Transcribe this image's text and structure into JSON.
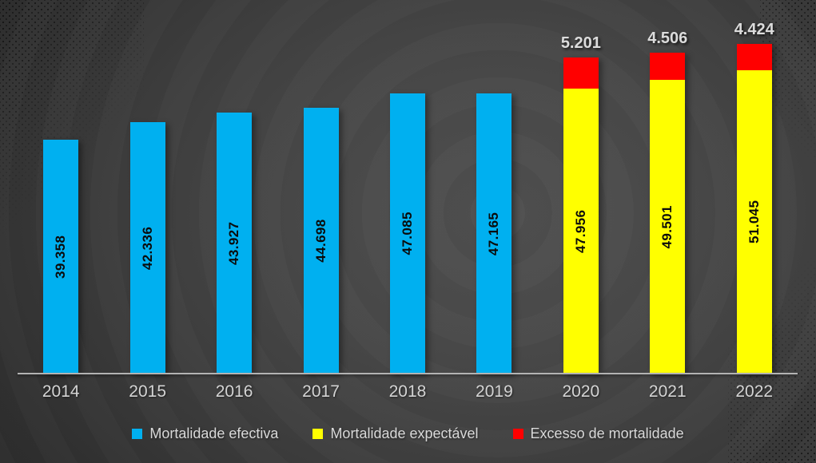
{
  "chart_data": {
    "type": "bar",
    "stacked": true,
    "title": "",
    "xlabel": "",
    "ylabel": "",
    "grid": false,
    "legend_position": "bottom",
    "ylim": [
      0,
      62865
    ],
    "categories": [
      "2014",
      "2015",
      "2016",
      "2017",
      "2018",
      "2019",
      "2020",
      "2021",
      "2022"
    ],
    "series": [
      {
        "name": "Mortalidade efectiva",
        "key": "effective",
        "color": "#00B0F0",
        "values": [
          39358,
          42336,
          43927,
          44698,
          47085,
          47165,
          null,
          null,
          null
        ],
        "labels": [
          "39.358",
          "42.336",
          "43.927",
          "44.698",
          "47.085",
          "47.165",
          null,
          null,
          null
        ],
        "label_position": "inside-vertical"
      },
      {
        "name": "Mortalidade expectável",
        "key": "expected",
        "color": "#FFFF00",
        "values": [
          null,
          null,
          null,
          null,
          null,
          null,
          47956,
          49501,
          51045
        ],
        "labels": [
          null,
          null,
          null,
          null,
          null,
          null,
          "47.956",
          "49.501",
          "51.045"
        ],
        "label_position": "inside-vertical"
      },
      {
        "name": "Excesso de mortalidade",
        "key": "excess",
        "color": "#FF0000",
        "values": [
          null,
          null,
          null,
          null,
          null,
          null,
          5201,
          4506,
          4424
        ],
        "labels": [
          null,
          null,
          null,
          null,
          null,
          null,
          "5.201",
          "4.506",
          "4.424"
        ],
        "label_position": "above"
      }
    ]
  },
  "colors": {
    "background_center": "#505050",
    "background_edge": "#292929",
    "axis_line": "#b3b3b3",
    "tick_label": "#d4d4d4",
    "legend_text": "#d9d9d9",
    "bar_label_inside": "#0b0b0b",
    "bar_label_above": "#dcdcdc"
  }
}
